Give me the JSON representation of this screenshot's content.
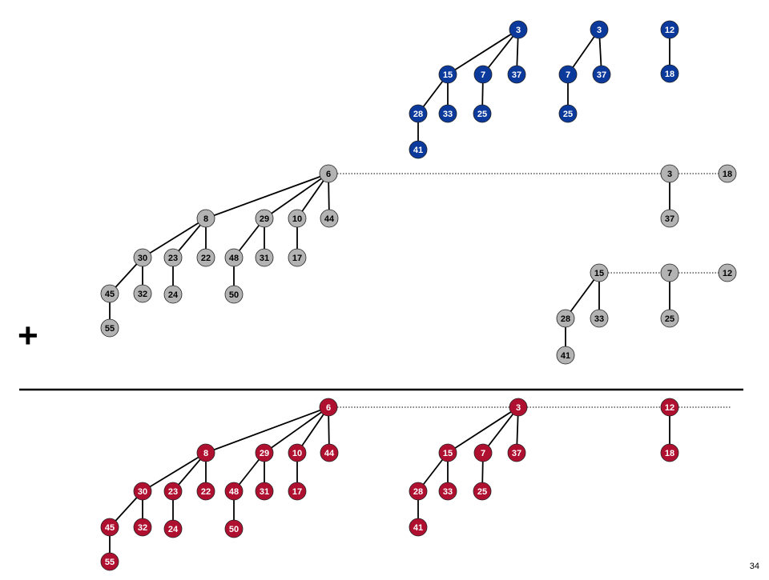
{
  "colors": {
    "blue": "#0b3a9c",
    "gray": "#b3b3b3",
    "red": "#b01030",
    "edge": "#000000"
  },
  "operator": "+",
  "page_number": "34",
  "heaps": {
    "blue": [
      "3",
      "15",
      "7",
      "37",
      "28",
      "33",
      "25",
      "41",
      "3",
      "7",
      "37",
      "25",
      "12",
      "18"
    ],
    "gray": [
      "6",
      "8",
      "29",
      "10",
      "44",
      "30",
      "23",
      "22",
      "48",
      "31",
      "17",
      "45",
      "32",
      "24",
      "50",
      "55",
      "3",
      "37",
      "18",
      "15",
      "28",
      "33",
      "41",
      "7",
      "25",
      "12"
    ],
    "red": [
      "6",
      "8",
      "29",
      "10",
      "44",
      "30",
      "23",
      "22",
      "48",
      "31",
      "17",
      "45",
      "32",
      "24",
      "50",
      "55",
      "3",
      "15",
      "7",
      "37",
      "28",
      "33",
      "25",
      "41",
      "12",
      "18"
    ]
  }
}
